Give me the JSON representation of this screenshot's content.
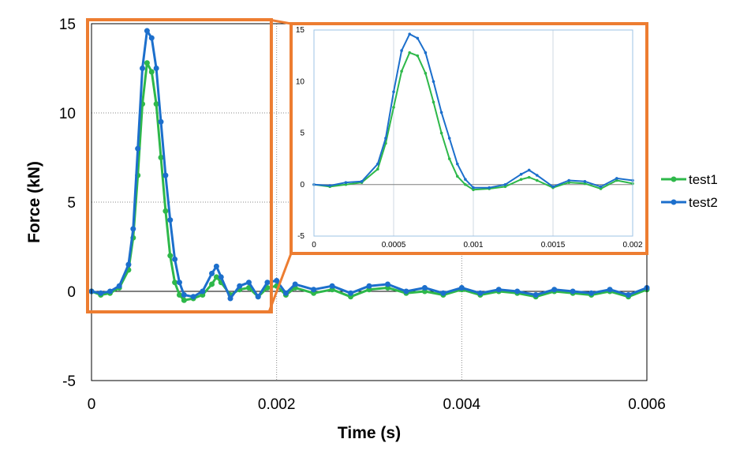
{
  "colors": {
    "test1": "#2eb84a",
    "test2": "#1c6fcc",
    "highlight": "#ed7d31",
    "inset_border": "#9dc3e6"
  },
  "chart_data": [
    {
      "type": "line",
      "role": "main",
      "xlabel": "Time (s)",
      "ylabel": "Force (kN)",
      "xlim": [
        0,
        0.006
      ],
      "ylim": [
        -5,
        15
      ],
      "xticks": [
        "0",
        "0.002",
        "0.004",
        "0.006"
      ],
      "yticks": [
        "-5",
        "0",
        "5",
        "10",
        "15"
      ],
      "grid": "dotted gridlines at x = 0.002, 0.004 and y = 5, 10",
      "legend_position": "right",
      "highlight_box_x_range": [
        0,
        0.0019
      ],
      "series": [
        {
          "name": "test1",
          "points": [
            [
              0,
              0
            ],
            [
              0.0001,
              -0.2
            ],
            [
              0.0002,
              -0.1
            ],
            [
              0.0003,
              0.2
            ],
            [
              0.0004,
              1.2
            ],
            [
              0.00045,
              3
            ],
            [
              0.0005,
              6.5
            ],
            [
              0.00055,
              10.5
            ],
            [
              0.0006,
              12.8
            ],
            [
              0.00065,
              12.3
            ],
            [
              0.0007,
              10.5
            ],
            [
              0.00075,
              7.5
            ],
            [
              0.0008,
              4.5
            ],
            [
              0.00085,
              2
            ],
            [
              0.0009,
              0.5
            ],
            [
              0.00095,
              -0.2
            ],
            [
              0.001,
              -0.5
            ],
            [
              0.0011,
              -0.4
            ],
            [
              0.0012,
              -0.2
            ],
            [
              0.0013,
              0.4
            ],
            [
              0.00135,
              0.8
            ],
            [
              0.0014,
              0.5
            ],
            [
              0.0015,
              -0.2
            ],
            [
              0.0016,
              0.1
            ],
            [
              0.0017,
              0.2
            ],
            [
              0.0018,
              -0.3
            ],
            [
              0.0019,
              0.2
            ],
            [
              0.002,
              0.3
            ],
            [
              0.0021,
              -0.2
            ],
            [
              0.0022,
              0.2
            ],
            [
              0.0024,
              -0.1
            ],
            [
              0.0026,
              0.1
            ],
            [
              0.0028,
              -0.3
            ],
            [
              0.003,
              0.1
            ],
            [
              0.0032,
              0.2
            ],
            [
              0.0034,
              -0.1
            ],
            [
              0.0036,
              0
            ],
            [
              0.0038,
              -0.2
            ],
            [
              0.004,
              0.1
            ],
            [
              0.0042,
              -0.2
            ],
            [
              0.0044,
              0
            ],
            [
              0.0046,
              -0.1
            ],
            [
              0.0048,
              -0.3
            ],
            [
              0.005,
              0
            ],
            [
              0.0052,
              -0.1
            ],
            [
              0.0054,
              -0.2
            ],
            [
              0.0056,
              0
            ],
            [
              0.0058,
              -0.3
            ],
            [
              0.006,
              0.1
            ]
          ]
        },
        {
          "name": "test2",
          "points": [
            [
              0,
              0
            ],
            [
              0.0001,
              -0.1
            ],
            [
              0.0002,
              0
            ],
            [
              0.0003,
              0.3
            ],
            [
              0.0004,
              1.5
            ],
            [
              0.00045,
              3.5
            ],
            [
              0.0005,
              8
            ],
            [
              0.00055,
              12.5
            ],
            [
              0.0006,
              14.6
            ],
            [
              0.00065,
              14.2
            ],
            [
              0.0007,
              12.5
            ],
            [
              0.00075,
              9.5
            ],
            [
              0.0008,
              6.5
            ],
            [
              0.00085,
              4
            ],
            [
              0.0009,
              1.8
            ],
            [
              0.00095,
              0.5
            ],
            [
              0.001,
              -0.2
            ],
            [
              0.0011,
              -0.3
            ],
            [
              0.0012,
              0
            ],
            [
              0.0013,
              1
            ],
            [
              0.00135,
              1.4
            ],
            [
              0.0014,
              0.8
            ],
            [
              0.0015,
              -0.4
            ],
            [
              0.0016,
              0.3
            ],
            [
              0.0017,
              0.5
            ],
            [
              0.0018,
              -0.3
            ],
            [
              0.0019,
              0.5
            ],
            [
              0.002,
              0.6
            ],
            [
              0.0021,
              -0.1
            ],
            [
              0.0022,
              0.4
            ],
            [
              0.0024,
              0.1
            ],
            [
              0.0026,
              0.3
            ],
            [
              0.0028,
              -0.1
            ],
            [
              0.003,
              0.3
            ],
            [
              0.0032,
              0.4
            ],
            [
              0.0034,
              0
            ],
            [
              0.0036,
              0.2
            ],
            [
              0.0038,
              -0.1
            ],
            [
              0.004,
              0.2
            ],
            [
              0.0042,
              -0.1
            ],
            [
              0.0044,
              0.1
            ],
            [
              0.0046,
              0
            ],
            [
              0.0048,
              -0.2
            ],
            [
              0.005,
              0.1
            ],
            [
              0.0052,
              0
            ],
            [
              0.0054,
              -0.1
            ],
            [
              0.0056,
              0.1
            ],
            [
              0.0058,
              -0.2
            ],
            [
              0.006,
              0.2
            ]
          ]
        }
      ]
    },
    {
      "type": "line",
      "role": "inset",
      "xlim": [
        0,
        0.002
      ],
      "ylim": [
        -5,
        15
      ],
      "xticks": [
        "0",
        "0.0005",
        "0.001",
        "0.0015",
        "0.002"
      ],
      "yticks": [
        "-5",
        "0",
        "5",
        "10",
        "15"
      ],
      "grid": "solid vertical gridlines at x = 0.0005, 0.001, 0.0015",
      "series": [
        {
          "name": "test1",
          "points": [
            [
              0,
              0
            ],
            [
              0.0001,
              -0.2
            ],
            [
              0.0002,
              0
            ],
            [
              0.0003,
              0.2
            ],
            [
              0.0004,
              1.5
            ],
            [
              0.00045,
              4
            ],
            [
              0.0005,
              7.5
            ],
            [
              0.00055,
              11
            ],
            [
              0.0006,
              12.8
            ],
            [
              0.00065,
              12.5
            ],
            [
              0.0007,
              10.8
            ],
            [
              0.00075,
              8
            ],
            [
              0.0008,
              5
            ],
            [
              0.00085,
              2.5
            ],
            [
              0.0009,
              0.8
            ],
            [
              0.00095,
              0
            ],
            [
              0.001,
              -0.5
            ],
            [
              0.0011,
              -0.4
            ],
            [
              0.0012,
              -0.2
            ],
            [
              0.0013,
              0.5
            ],
            [
              0.00135,
              0.7
            ],
            [
              0.0014,
              0.4
            ],
            [
              0.0015,
              -0.3
            ],
            [
              0.0016,
              0.2
            ],
            [
              0.0017,
              0.1
            ],
            [
              0.0018,
              -0.4
            ],
            [
              0.0019,
              0.4
            ],
            [
              0.002,
              0.1
            ]
          ]
        },
        {
          "name": "test2",
          "points": [
            [
              0,
              0
            ],
            [
              0.0001,
              -0.1
            ],
            [
              0.0002,
              0.2
            ],
            [
              0.0003,
              0.3
            ],
            [
              0.0004,
              2
            ],
            [
              0.00045,
              4.5
            ],
            [
              0.0005,
              9
            ],
            [
              0.00055,
              13
            ],
            [
              0.0006,
              14.6
            ],
            [
              0.00065,
              14.2
            ],
            [
              0.0007,
              12.8
            ],
            [
              0.00075,
              10
            ],
            [
              0.0008,
              7
            ],
            [
              0.00085,
              4.5
            ],
            [
              0.0009,
              2
            ],
            [
              0.00095,
              0.5
            ],
            [
              0.001,
              -0.3
            ],
            [
              0.0011,
              -0.3
            ],
            [
              0.0012,
              0
            ],
            [
              0.0013,
              1
            ],
            [
              0.00135,
              1.4
            ],
            [
              0.0014,
              0.9
            ],
            [
              0.0015,
              -0.2
            ],
            [
              0.0016,
              0.4
            ],
            [
              0.0017,
              0.3
            ],
            [
              0.0018,
              -0.2
            ],
            [
              0.0019,
              0.6
            ],
            [
              0.002,
              0.4
            ]
          ]
        }
      ]
    }
  ]
}
